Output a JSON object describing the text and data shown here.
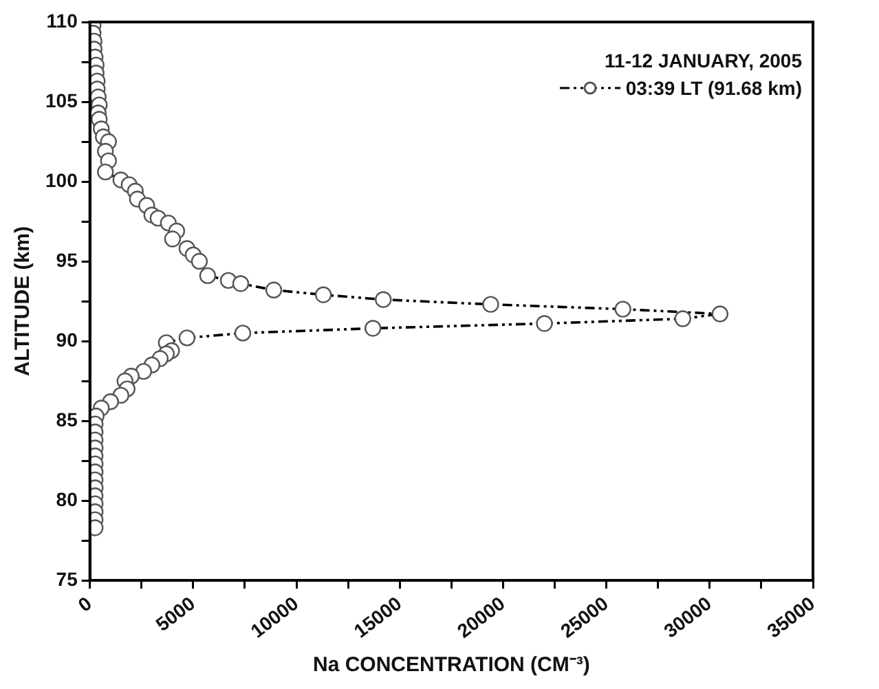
{
  "chart_data": {
    "type": "line",
    "xlabel": "Na CONCENTRATION (CM⁻³)",
    "ylabel": "ALTITUDE (km)",
    "legend_title": "11-12 JANUARY, 2005",
    "legend": "top right",
    "grid": false,
    "marker": "circle",
    "line_style": "dashed",
    "xlim": [
      0,
      35000
    ],
    "xticks": [
      0,
      {
        "value": 2500,
        "label": null
      },
      5000,
      {
        "value": 7500,
        "label": null
      },
      10000,
      {
        "value": 12500,
        "label": null
      },
      15000,
      {
        "value": 17500,
        "label": null
      },
      20000,
      {
        "value": 22500,
        "label": null
      },
      25000,
      {
        "value": 27500,
        "label": null
      },
      30000,
      {
        "value": 32500,
        "label": null
      },
      35000
    ],
    "ylim": [
      75,
      110
    ],
    "yticks": [
      75,
      {
        "value": 77.5,
        "label": null
      },
      80,
      {
        "value": 82.5,
        "label": null
      },
      85,
      {
        "value": 87.5,
        "label": null
      },
      90,
      {
        "value": 92.5,
        "label": null
      },
      95,
      {
        "value": 97.5,
        "label": null
      },
      100,
      {
        "value": 102.5,
        "label": null
      },
      105,
      {
        "value": 107.5,
        "label": null
      },
      110
    ],
    "series": [
      {
        "name": "03:39 LT (91.68 km)",
        "color": "#555555",
        "x": [
          150,
          150,
          200,
          200,
          250,
          300,
          300,
          350,
          350,
          400,
          450,
          400,
          450,
          550,
          650,
          900,
          750,
          900,
          750,
          1500,
          1900,
          2200,
          2300,
          2750,
          3000,
          3300,
          3800,
          4200,
          4000,
          4700,
          5000,
          5300,
          5700,
          6700,
          7300,
          8900,
          11300,
          14200,
          19400,
          25800,
          30500,
          28700,
          22000,
          13700,
          7400,
          4700,
          3700,
          3950,
          3700,
          3400,
          3000,
          2600,
          2000,
          1700,
          1800,
          1500,
          1000,
          550,
          300,
          250,
          250,
          250,
          250,
          250,
          250,
          250,
          250,
          250,
          250,
          250,
          250,
          250,
          250
        ],
        "values": [
          109.8,
          109.3,
          108.8,
          108.3,
          107.8,
          107.3,
          106.8,
          106.3,
          105.8,
          105.3,
          104.8,
          104.3,
          103.9,
          103.3,
          102.8,
          102.5,
          101.9,
          101.3,
          100.6,
          100.1,
          99.8,
          99.4,
          98.9,
          98.5,
          97.9,
          97.7,
          97.4,
          96.9,
          96.4,
          95.8,
          95.4,
          95.0,
          94.1,
          93.8,
          93.6,
          93.2,
          92.9,
          92.6,
          92.3,
          92.0,
          91.7,
          91.4,
          91.1,
          90.8,
          90.5,
          90.2,
          89.9,
          89.4,
          89.2,
          88.9,
          88.5,
          88.1,
          87.8,
          87.5,
          87.0,
          86.6,
          86.2,
          85.8,
          85.3,
          84.8,
          84.3,
          83.8,
          83.3,
          82.8,
          82.3,
          81.8,
          81.3,
          80.8,
          80.3,
          79.8,
          79.3,
          78.8,
          78.3
        ]
      }
    ]
  }
}
